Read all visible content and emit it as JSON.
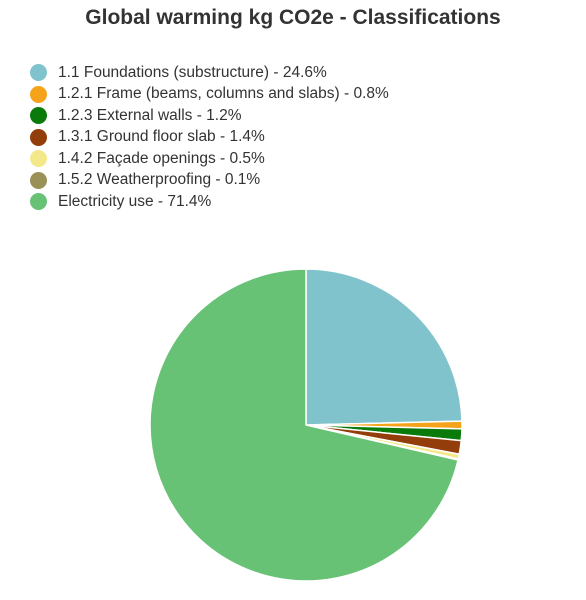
{
  "chart_data": {
    "type": "pie",
    "title": "Global warming kg CO2e - Classifications",
    "legend_position": "top-left",
    "categories": [
      "1.1 Foundations (substructure)",
      "1.2.1 Frame (beams, columns and slabs)",
      "1.2.3 External walls",
      "1.3.1 Ground floor slab",
      "1.4.2 Façade openings",
      "1.5.2 Weatherproofing",
      "Electricity use"
    ],
    "values": [
      24.6,
      0.8,
      1.2,
      1.4,
      0.5,
      0.1,
      71.4
    ],
    "unit": "%",
    "colors": [
      "#80c3cc",
      "#f5a31a",
      "#0a7a0a",
      "#933d0a",
      "#f4e98a",
      "#9a9158",
      "#68c276"
    ],
    "legend_labels": [
      "1.1 Foundations (substructure) - 24.6%",
      "1.2.1 Frame (beams, columns and slabs) - 0.8%",
      "1.2.3 External walls - 1.2%",
      "1.3.1 Ground floor slab - 1.4%",
      "1.4.2 Façade openings - 0.5%",
      "1.5.2 Weatherproofing - 0.1%",
      "Electricity use - 71.4%"
    ]
  }
}
